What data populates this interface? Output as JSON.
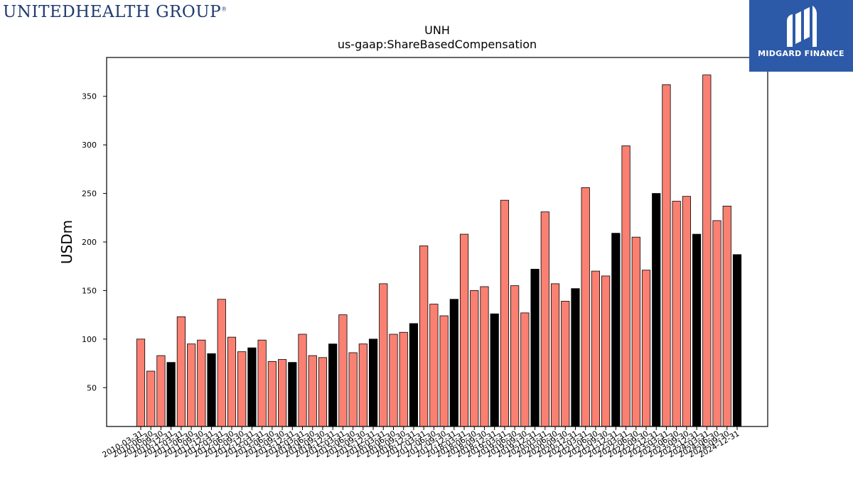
{
  "header": {
    "company_logo_text": "UNITEDHEALTH GROUP",
    "company_logo_reg": "®",
    "brand_text": "MIDGARD FINANCE",
    "brand_color": "#2d5aa8"
  },
  "chart_data": {
    "type": "bar",
    "title": "UNH",
    "subtitle": "us-gaap:ShareBasedCompensation",
    "xlabel": "",
    "ylabel": "USDm",
    "ylim": [
      10,
      390
    ],
    "yticks": [
      50,
      100,
      150,
      200,
      250,
      300,
      350
    ],
    "grid": false,
    "colors": {
      "quarterly": "#fa8072",
      "annual": "#000000"
    },
    "categories": [
      "2010-03-31",
      "2010-06-30",
      "2010-09-30",
      "2010-12-31",
      "2011-03-31",
      "2011-06-30",
      "2011-09-30",
      "2011-12-31",
      "2012-03-31",
      "2012-06-30",
      "2012-09-30",
      "2012-12-31",
      "2013-03-31",
      "2013-06-30",
      "2013-09-30",
      "2013-12-31",
      "2014-03-31",
      "2014-06-30",
      "2014-09-30",
      "2014-12-31",
      "2015-03-31",
      "2015-06-30",
      "2015-09-30",
      "2015-12-31",
      "2016-03-31",
      "2016-06-30",
      "2016-09-30",
      "2016-12-31",
      "2017-03-31",
      "2017-06-30",
      "2017-09-30",
      "2017-12-31",
      "2018-03-31",
      "2018-06-30",
      "2018-09-30",
      "2018-12-31",
      "2019-03-31",
      "2019-06-30",
      "2019-09-30",
      "2019-12-31",
      "2020-03-31",
      "2020-06-30",
      "2020-09-30",
      "2020-12-31",
      "2021-03-31",
      "2021-06-30",
      "2021-09-30",
      "2021-12-31",
      "2022-03-31",
      "2022-06-30",
      "2022-09-30",
      "2022-12-31",
      "2023-03-31",
      "2023-06-30",
      "2023-09-30",
      "2023-12-31",
      "2024-03-31",
      "2024-06-30",
      "2024-09-30",
      "2024-12-31"
    ],
    "values": [
      100,
      67,
      83,
      76,
      123,
      95,
      99,
      85,
      141,
      102,
      87,
      91,
      99,
      77,
      79,
      76,
      105,
      83,
      81,
      95,
      125,
      86,
      95,
      100,
      157,
      105,
      107,
      116,
      196,
      136,
      124,
      141,
      208,
      150,
      154,
      126,
      243,
      155,
      127,
      172,
      231,
      157,
      139,
      152,
      256,
      170,
      165,
      209,
      299,
      205,
      171,
      250,
      362,
      242,
      247,
      208,
      372,
      222,
      237,
      187
    ],
    "annual_flags": [
      0,
      0,
      0,
      1,
      0,
      0,
      0,
      1,
      0,
      0,
      0,
      1,
      0,
      0,
      0,
      1,
      0,
      0,
      0,
      1,
      0,
      0,
      0,
      1,
      0,
      0,
      0,
      1,
      0,
      0,
      0,
      1,
      0,
      0,
      0,
      1,
      0,
      0,
      0,
      1,
      0,
      0,
      0,
      1,
      0,
      0,
      0,
      1,
      0,
      0,
      0,
      1,
      0,
      0,
      0,
      1,
      0,
      0,
      0,
      1
    ]
  }
}
